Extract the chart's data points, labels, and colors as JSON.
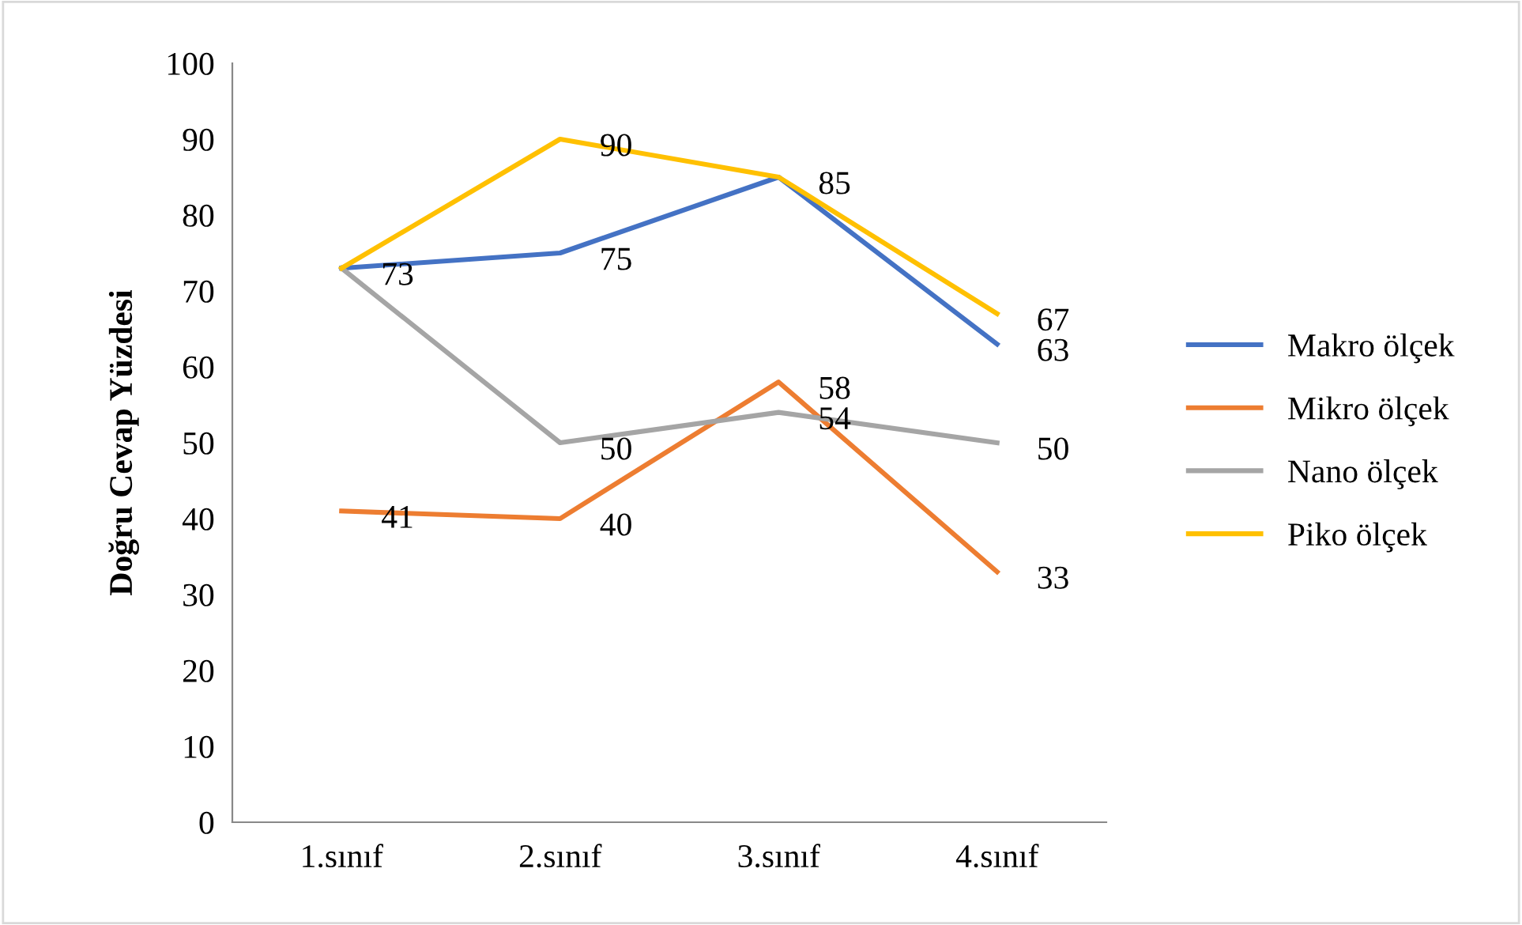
{
  "chart_data": {
    "type": "line",
    "ylabel": "Doğru Cevap Yüzdesi",
    "categories": [
      "1.sınıf",
      "2.sınıf",
      "3.sınıf",
      "4.sınıf"
    ],
    "series": [
      {
        "name": "Makro ölçek",
        "color": "#4472c4",
        "values": [
          73,
          75,
          85,
          63
        ],
        "value_labels": [
          "73",
          "75",
          "85",
          "63"
        ]
      },
      {
        "name": "Mikro ölçek",
        "color": "#ed7d31",
        "values": [
          41,
          40,
          58,
          33
        ],
        "value_labels": [
          "41",
          "40",
          "58",
          "33"
        ]
      },
      {
        "name": "Nano ölçek",
        "color": "#a5a5a5",
        "values": [
          73,
          50,
          54,
          50
        ],
        "value_labels": [
          null,
          "50",
          "54",
          "50"
        ]
      },
      {
        "name": "Piko ölçek",
        "color": "#ffc000",
        "values": [
          73,
          90,
          85,
          67
        ],
        "value_labels": [
          null,
          "90",
          null,
          "67"
        ]
      }
    ],
    "ylim": [
      0,
      100
    ],
    "yticks": [
      0,
      10,
      20,
      30,
      40,
      50,
      60,
      70,
      80,
      90,
      100
    ],
    "grid": false,
    "legend": "right",
    "marker": "none",
    "line_style": "solid"
  }
}
